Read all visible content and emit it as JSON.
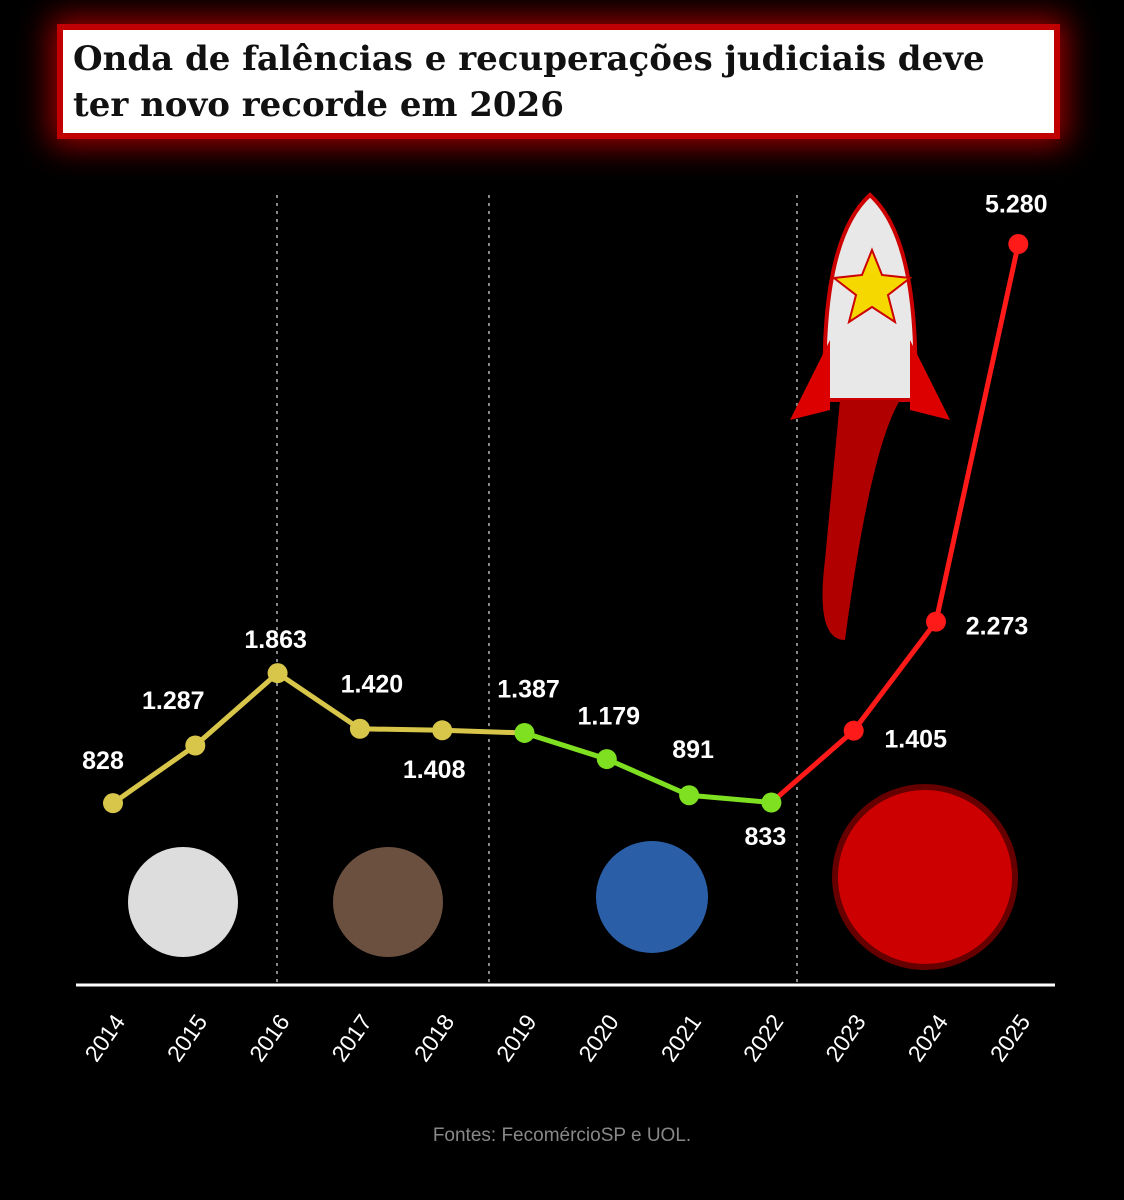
{
  "chart_data": {
    "type": "line",
    "title": "Onda de falências e recuperações judiciais deve ter novo recorde em 2026",
    "categories": [
      "2014",
      "2015",
      "2016",
      "2017",
      "2018",
      "2019",
      "2020",
      "2021",
      "2022",
      "2023",
      "2024",
      "2025"
    ],
    "values": [
      828,
      1287,
      1863,
      1420,
      1408,
      1387,
      1179,
      891,
      833,
      1405,
      2273,
      5280
    ],
    "value_labels": [
      "828",
      "1.287",
      "1.863",
      "1.420",
      "1.408",
      "1.387",
      "1.179",
      "891",
      "833",
      "1.405",
      "2.273",
      "5.280"
    ],
    "colors": [
      "#d8c64b",
      "#d8c64b",
      "#d8c64b",
      "#d8c64b",
      "#d8c64b",
      "#7fe021",
      "#7fe021",
      "#7fe021",
      "#7fe021",
      "#ff1a1a",
      "#ff1a1a",
      "#ff1a1a"
    ],
    "segment_colors": [
      "#d8c64b",
      "#d8c64b",
      "#d8c64b",
      "#d8c64b",
      "#d8c64b",
      "#7fe021",
      "#7fe021",
      "#7fe021",
      "#ff1a1a",
      "#ff1a1a",
      "#ff1a1a"
    ],
    "ylim": [
      -620,
      5750
    ],
    "source": "Fontes: FecomércioSP e UOL."
  }
}
